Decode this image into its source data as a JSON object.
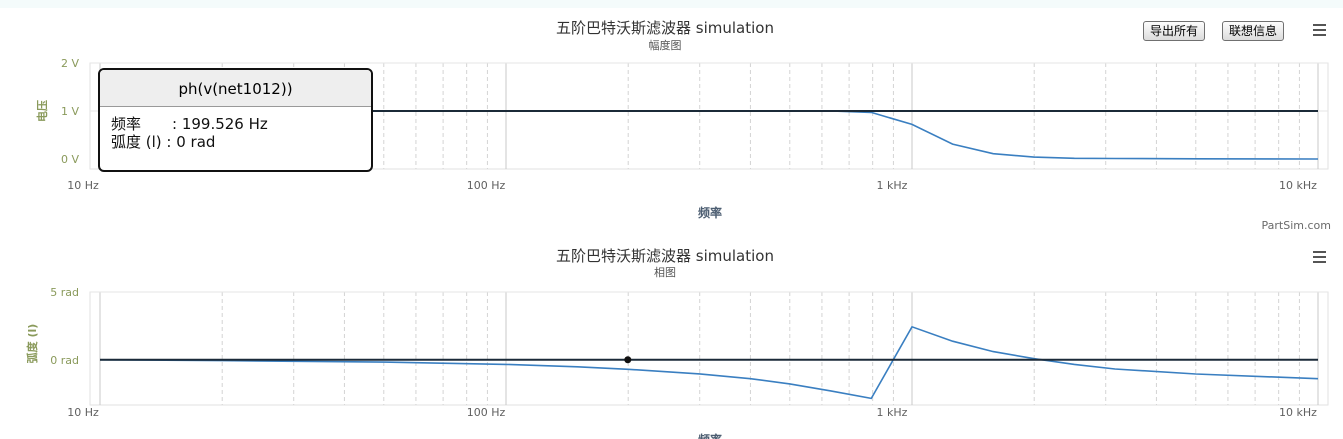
{
  "toolbar": {
    "export_label": "导出所有",
    "contact_label": "联想信息"
  },
  "credit": "PartSim.com",
  "tooltip": {
    "series": "ph(v(net1012))",
    "row1_label": "频率",
    "row1_value": ": 199.526 Hz",
    "row2_label": "弧度 (l)",
    "row2_value": ": 0 rad"
  },
  "chart_data": [
    {
      "type": "line",
      "title": "五阶巴特沃斯滤波器 simulation",
      "subtitle": "幅度图",
      "xlabel": "频率",
      "ylabel": "电压",
      "xscale": "log",
      "xlim": [
        10,
        10000
      ],
      "ylim": [
        0,
        2
      ],
      "xticks": [
        10,
        100,
        1000,
        10000
      ],
      "xtick_labels": [
        "10 Hz",
        "100 Hz",
        "1 kHz",
        "10 kHz"
      ],
      "yticks": [
        0,
        1,
        2
      ],
      "ytick_labels": [
        "0 V",
        "1 V",
        "2 V"
      ],
      "grid": true,
      "series": [
        {
          "color": "#3a7fc1",
          "x": [
            10,
            100,
            500,
            631,
            794,
            1000,
            1259,
            1585,
            1995,
            2512,
            3162,
            5000,
            10000
          ],
          "y": [
            1.0,
            1.0,
            1.0,
            1.0,
            0.97,
            0.72,
            0.31,
            0.11,
            0.04,
            0.015,
            0.01,
            0.005,
            0.0
          ]
        },
        {
          "color": "#1b2a38",
          "x": [
            10,
            10000
          ],
          "y": [
            1.0,
            1.0
          ]
        }
      ]
    },
    {
      "type": "line",
      "title": "五阶巴特沃斯滤波器 simulation",
      "subtitle": "相图",
      "xlabel": "频率",
      "ylabel": "弧度 (l)",
      "xscale": "log",
      "xlim": [
        10,
        10000
      ],
      "ylim": [
        -2.6,
        5
      ],
      "xticks": [
        10,
        100,
        1000,
        10000
      ],
      "xtick_labels": [
        "10 Hz",
        "100 Hz",
        "1 kHz",
        "10 kHz"
      ],
      "yticks": [
        0,
        5
      ],
      "ytick_labels": [
        "0 rad",
        "5 rad"
      ],
      "grid": true,
      "series": [
        {
          "color": "#3a7fc1",
          "x": [
            10,
            20,
            50,
            100,
            150,
            200,
            300,
            400,
            500,
            631,
            794,
            1000,
            1259,
            1585,
            2000,
            2512,
            3162,
            5000,
            10000
          ],
          "y": [
            0.0,
            -0.06,
            -0.17,
            -0.34,
            -0.52,
            -0.7,
            -1.04,
            -1.4,
            -1.78,
            -2.3,
            -2.85,
            2.43,
            1.37,
            0.6,
            0.08,
            -0.34,
            -0.68,
            -1.05,
            -1.4
          ]
        },
        {
          "color": "#1b2a38",
          "x": [
            10,
            10000
          ],
          "y": [
            0.0,
            0.0
          ]
        }
      ],
      "marker": {
        "x": 199.526,
        "y": 0
      }
    }
  ]
}
